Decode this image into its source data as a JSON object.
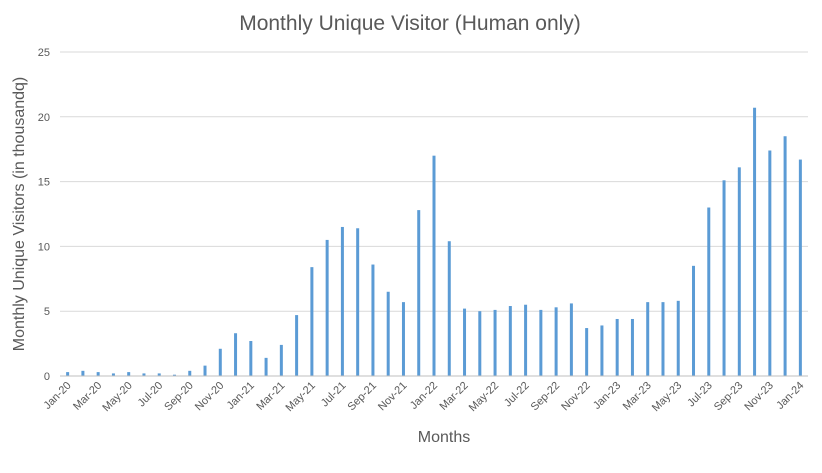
{
  "chart_data": {
    "type": "bar",
    "title": "Monthly Unique Visitor (Human only)",
    "xlabel": "Months",
    "ylabel": "Monthly Unique Visitors (in thousandq)",
    "ylim": [
      0,
      25
    ],
    "yticks": [
      0,
      5,
      10,
      15,
      20,
      25
    ],
    "grid": true,
    "legend": "none",
    "bar_color": "#5b9bd5",
    "categories": [
      "Jan-20",
      "Feb-20",
      "Mar-20",
      "Apr-20",
      "May-20",
      "Jun-20",
      "Jul-20",
      "Aug-20",
      "Sep-20",
      "Oct-20",
      "Nov-20",
      "Dec-20",
      "Jan-21",
      "Feb-21",
      "Mar-21",
      "Apr-21",
      "May-21",
      "Jun-21",
      "Jul-21",
      "Aug-21",
      "Sep-21",
      "Oct-21",
      "Nov-21",
      "Dec-21",
      "Jan-22",
      "Feb-22",
      "Mar-22",
      "Apr-22",
      "May-22",
      "Jun-22",
      "Jul-22",
      "Aug-22",
      "Sep-22",
      "Oct-22",
      "Nov-22",
      "Dec-22",
      "Jan-23",
      "Feb-23",
      "Mar-23",
      "Apr-23",
      "May-23",
      "Jun-23",
      "Jul-23",
      "Aug-23",
      "Sep-23",
      "Oct-23",
      "Nov-23",
      "Dec-23",
      "Jan-24"
    ],
    "visible_tick_labels": [
      "Jan-20",
      "Mar-20",
      "May-20",
      "Jul-20",
      "Sep-20",
      "Nov-20",
      "Jan-21",
      "Mar-21",
      "May-21",
      "Jul-21",
      "Sep-21",
      "Nov-21",
      "Jan-22",
      "Mar-22",
      "May-22",
      "Jul-22",
      "Sep-22",
      "Nov-22",
      "Jan-23",
      "Mar-23",
      "May-23",
      "Jul-23",
      "Sep-23",
      "Nov-23",
      "Jan-24"
    ],
    "values": [
      0.3,
      0.4,
      0.3,
      0.2,
      0.3,
      0.2,
      0.2,
      0.1,
      0.4,
      0.8,
      2.1,
      3.3,
      2.7,
      1.4,
      2.4,
      4.7,
      8.4,
      10.5,
      11.5,
      11.4,
      8.6,
      6.5,
      5.7,
      12.8,
      17.0,
      10.4,
      5.2,
      5.0,
      5.1,
      5.4,
      5.5,
      5.1,
      5.3,
      5.6,
      3.7,
      3.9,
      4.4,
      4.4,
      5.7,
      5.7,
      5.8,
      8.5,
      13.0,
      15.1,
      16.1,
      20.7,
      17.4,
      18.5,
      16.7
    ]
  }
}
